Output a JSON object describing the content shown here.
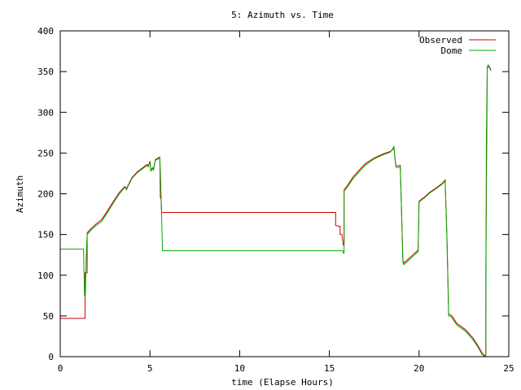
{
  "chart_data": {
    "type": "line",
    "title": "5: Azimuth vs. Time",
    "xlabel": "time (Elapse Hours)",
    "ylabel": "Azimuth",
    "xlim": [
      0,
      25
    ],
    "ylim": [
      0,
      400
    ],
    "xticks": [
      0,
      5,
      10,
      15,
      20,
      25
    ],
    "yticks": [
      0,
      50,
      100,
      150,
      200,
      250,
      300,
      350,
      400
    ],
    "grid": false,
    "legend": "top-right",
    "series": [
      {
        "name": "Observed",
        "color": "#cc0000",
        "points": [
          [
            0,
            47
          ],
          [
            1.38,
            47
          ],
          [
            1.38,
            103
          ],
          [
            1.5,
            103
          ],
          [
            1.5,
            152
          ],
          [
            1.7,
            157
          ],
          [
            2.0,
            163
          ],
          [
            2.3,
            168
          ],
          [
            2.6,
            178
          ],
          [
            3.0,
            192
          ],
          [
            3.3,
            202
          ],
          [
            3.6,
            209
          ],
          [
            3.7,
            206
          ],
          [
            3.75,
            209
          ],
          [
            4.0,
            220
          ],
          [
            4.3,
            227
          ],
          [
            4.6,
            232
          ],
          [
            4.85,
            236
          ],
          [
            4.9,
            234
          ],
          [
            5.0,
            240
          ],
          [
            5.05,
            229
          ],
          [
            5.15,
            232
          ],
          [
            5.2,
            230
          ],
          [
            5.3,
            242
          ],
          [
            5.55,
            245
          ],
          [
            5.58,
            195
          ],
          [
            5.62,
            194
          ],
          [
            5.65,
            177
          ],
          [
            15.35,
            177
          ],
          [
            15.35,
            161
          ],
          [
            15.6,
            160
          ],
          [
            15.6,
            150
          ],
          [
            15.7,
            150
          ],
          [
            15.78,
            137
          ],
          [
            15.82,
            137
          ],
          [
            15.82,
            205
          ],
          [
            16.0,
            210
          ],
          [
            16.3,
            220
          ],
          [
            16.7,
            230
          ],
          [
            17.0,
            237
          ],
          [
            17.5,
            244
          ],
          [
            18.0,
            249
          ],
          [
            18.4,
            252
          ],
          [
            18.6,
            256
          ],
          [
            18.7,
            235
          ],
          [
            18.8,
            234
          ],
          [
            18.95,
            235
          ],
          [
            19.0,
            197
          ],
          [
            19.1,
            118
          ],
          [
            19.15,
            115
          ],
          [
            19.4,
            120
          ],
          [
            19.7,
            126
          ],
          [
            19.95,
            131
          ],
          [
            20.0,
            191
          ],
          [
            20.3,
            196
          ],
          [
            20.6,
            202
          ],
          [
            21.0,
            208
          ],
          [
            21.3,
            213
          ],
          [
            21.45,
            217
          ],
          [
            21.55,
            150
          ],
          [
            21.65,
            52
          ],
          [
            21.8,
            51
          ],
          [
            22.1,
            41
          ],
          [
            22.6,
            33
          ],
          [
            23.0,
            23
          ],
          [
            23.3,
            13
          ],
          [
            23.5,
            5
          ],
          [
            23.65,
            1
          ],
          [
            23.72,
            2
          ],
          [
            23.72,
            100
          ],
          [
            23.8,
            355
          ],
          [
            23.85,
            358
          ],
          [
            23.95,
            355
          ],
          [
            24.0,
            352
          ]
        ]
      },
      {
        "name": "Dome",
        "color": "#00aa00",
        "points": [
          [
            0,
            132
          ],
          [
            1.3,
            132
          ],
          [
            1.35,
            75
          ],
          [
            1.4,
            75
          ],
          [
            1.45,
            125
          ],
          [
            1.5,
            150
          ],
          [
            1.7,
            155
          ],
          [
            2.0,
            161
          ],
          [
            2.3,
            166
          ],
          [
            2.6,
            176
          ],
          [
            3.0,
            190
          ],
          [
            3.3,
            200
          ],
          [
            3.6,
            208
          ],
          [
            3.7,
            205
          ],
          [
            3.75,
            208
          ],
          [
            4.0,
            219
          ],
          [
            4.3,
            226
          ],
          [
            4.6,
            231
          ],
          [
            4.85,
            235
          ],
          [
            4.9,
            233
          ],
          [
            5.0,
            239
          ],
          [
            5.05,
            228
          ],
          [
            5.15,
            231
          ],
          [
            5.2,
            229
          ],
          [
            5.3,
            241
          ],
          [
            5.55,
            244
          ],
          [
            5.6,
            215
          ],
          [
            5.7,
            130
          ],
          [
            15.75,
            130
          ],
          [
            15.78,
            127
          ],
          [
            15.82,
            127
          ],
          [
            15.82,
            203
          ],
          [
            16.0,
            208
          ],
          [
            16.3,
            218
          ],
          [
            16.7,
            228
          ],
          [
            17.0,
            235
          ],
          [
            17.5,
            243
          ],
          [
            18.0,
            248
          ],
          [
            18.4,
            251
          ],
          [
            18.6,
            258
          ],
          [
            18.7,
            233
          ],
          [
            18.8,
            232
          ],
          [
            18.95,
            233
          ],
          [
            19.0,
            195
          ],
          [
            19.1,
            116
          ],
          [
            19.15,
            113
          ],
          [
            19.4,
            118
          ],
          [
            19.7,
            124
          ],
          [
            19.95,
            129
          ],
          [
            20.0,
            190
          ],
          [
            20.3,
            195
          ],
          [
            20.6,
            201
          ],
          [
            21.0,
            207
          ],
          [
            21.3,
            212
          ],
          [
            21.45,
            216
          ],
          [
            21.55,
            148
          ],
          [
            21.65,
            50
          ],
          [
            21.8,
            49
          ],
          [
            22.1,
            39
          ],
          [
            22.6,
            31
          ],
          [
            23.0,
            21
          ],
          [
            23.3,
            11
          ],
          [
            23.5,
            3
          ],
          [
            23.65,
            0
          ],
          [
            23.72,
            0
          ],
          [
            23.75,
            270
          ],
          [
            23.8,
            353
          ],
          [
            23.85,
            357
          ],
          [
            23.95,
            354
          ],
          [
            24.0,
            351
          ]
        ]
      }
    ]
  }
}
